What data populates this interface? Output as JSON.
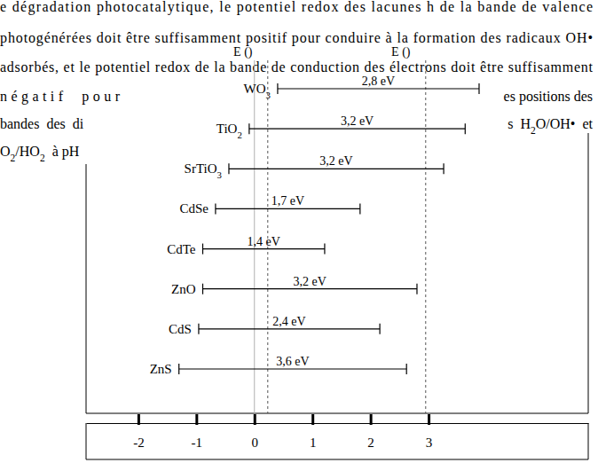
{
  "document": {
    "lines": [
      "e dégradation photocatalytique, le potentiel redox des lacunes h de la bande de valence",
      "photogénérées doit être suffisamment positif pour conduire à la formation des radicaux OH•",
      "adsorbés, et le potentiel redox de la bande de conduction des électrons doit être suffisamment",
      "négatif  pour",
      "es positions des",
      "bandes  des  di",
      "s  H2O/OH•  et",
      "O2/HO2  à pH"
    ]
  },
  "chart_data": {
    "type": "range_bar",
    "orientation": "horizontal",
    "categories": [
      "WO3",
      "TiO2",
      "SrTiO3",
      "CdSe",
      "CdTe",
      "ZnO",
      "CdS",
      "ZnS"
    ],
    "low": [
      0.4,
      -0.09,
      -0.44,
      -0.67,
      -0.89,
      -0.89,
      -0.96,
      -1.3
    ],
    "high": [
      3.87,
      3.63,
      3.26,
      1.82,
      1.21,
      2.8,
      2.16,
      2.62
    ],
    "gap_labels": [
      "2,8 eV",
      "3,2 eV",
      "3,2 eV",
      "1,7 eV",
      "1,4 eV",
      "3,2 eV",
      "2,4 eV",
      "3,6 eV"
    ],
    "reference_lines": [
      {
        "value": 0
      },
      {
        "value": 0.23,
        "label": "E ()"
      },
      {
        "value": 2.95,
        "label": "E ()"
      }
    ],
    "xlim": [
      -2.9,
      5.75
    ],
    "xticks": [
      -2,
      -1,
      0,
      1,
      2,
      3
    ]
  }
}
